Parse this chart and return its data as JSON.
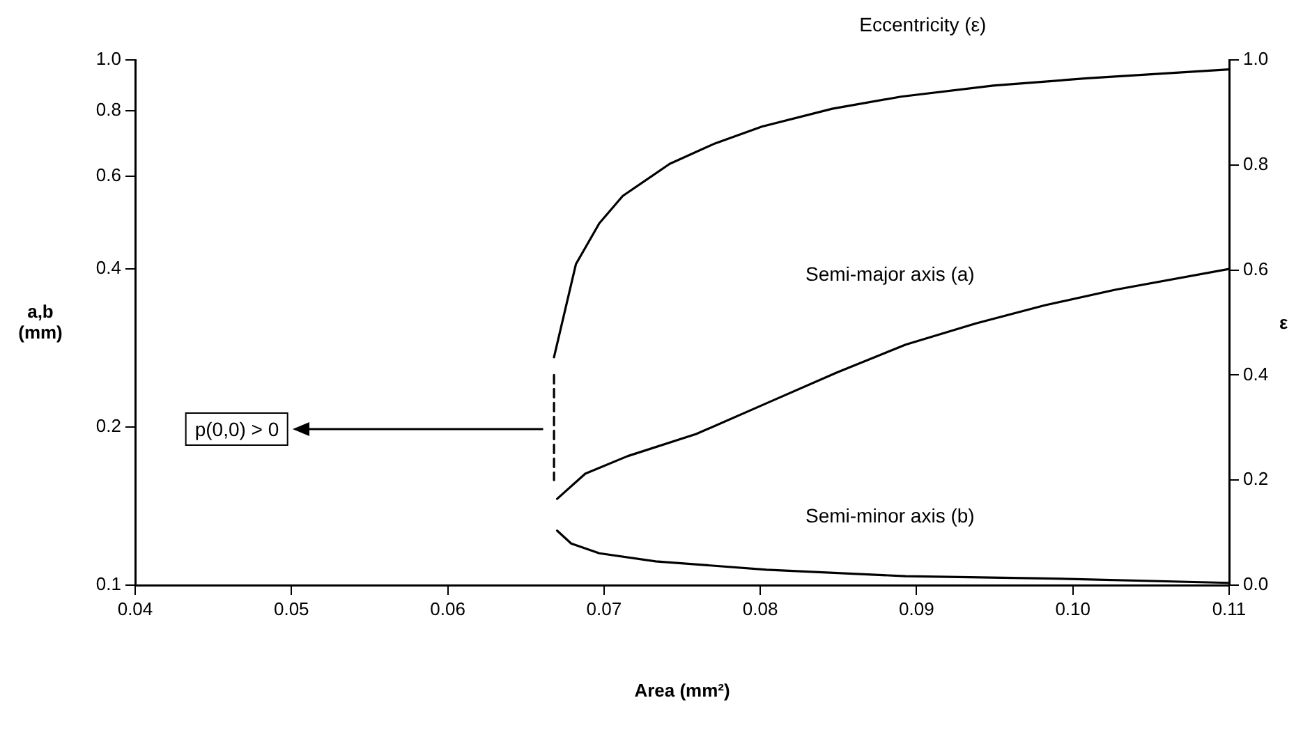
{
  "chart_data": {
    "type": "line",
    "xlabel": "Area (mm²)",
    "ylabel": "a,b (mm)",
    "y2label": "ε",
    "log": "y",
    "legend": false,
    "grid": false,
    "marker": "none",
    "xlim": [
      0.04,
      0.11
    ],
    "xticks": [
      0.04,
      0.05,
      0.06,
      0.07,
      0.08,
      0.09,
      {
        "value": 0.1,
        "label": "0.10"
      },
      0.11
    ],
    "ylim": [
      0.1,
      1.0
    ],
    "yticks": [
      0.1,
      0.2,
      0.4,
      0.6,
      0.8,
      {
        "value": 1.0,
        "label": "1.0"
      }
    ],
    "y2lim": [
      0,
      1.0
    ],
    "y2ticks": [
      {
        "value": 0,
        "label": "0.0"
      },
      0.2,
      0.4,
      0.6,
      0.8,
      {
        "value": 1.0,
        "label": "1.0"
      }
    ],
    "annotations": [
      "p(0,0) > 0"
    ],
    "series": [
      {
        "name": "Eccentricity (ε)",
        "color": "#000000",
        "axis": "y2",
        "x": [
          0.0668,
          0.0682,
          0.0697,
          0.0712,
          0.0742,
          0.0771,
          0.0801,
          0.0846,
          0.089,
          0.0949,
          0.1009,
          0.11
        ],
        "values": [
          0.434,
          0.611,
          0.689,
          0.741,
          0.802,
          0.841,
          0.873,
          0.907,
          0.93,
          0.951,
          0.965,
          0.982
        ]
      },
      {
        "name": "Semi-major axis (a)",
        "color": "#000000",
        "axis": "y",
        "x": [
          0.067,
          0.0688,
          0.0715,
          0.0759,
          0.0804,
          0.0849,
          0.0893,
          0.0938,
          0.0982,
          0.1027,
          0.11
        ],
        "values": [
          0.146,
          0.163,
          0.176,
          0.194,
          0.222,
          0.254,
          0.287,
          0.315,
          0.341,
          0.365,
          0.4
        ]
      },
      {
        "name": "Semi-minor axis (b)",
        "color": "#000000",
        "axis": "y",
        "x": [
          0.067,
          0.0679,
          0.0697,
          0.0733,
          0.0804,
          0.0893,
          0.0982,
          0.11
        ],
        "values": [
          0.127,
          0.12,
          0.115,
          0.111,
          0.107,
          0.104,
          0.103,
          0.101
        ]
      },
      {
        "color": "#000000",
        "axis": "y2",
        "line_style": "dashed",
        "x": [
          0.0668,
          0.0668
        ],
        "values": [
          0.4,
          0.2
        ]
      }
    ]
  }
}
